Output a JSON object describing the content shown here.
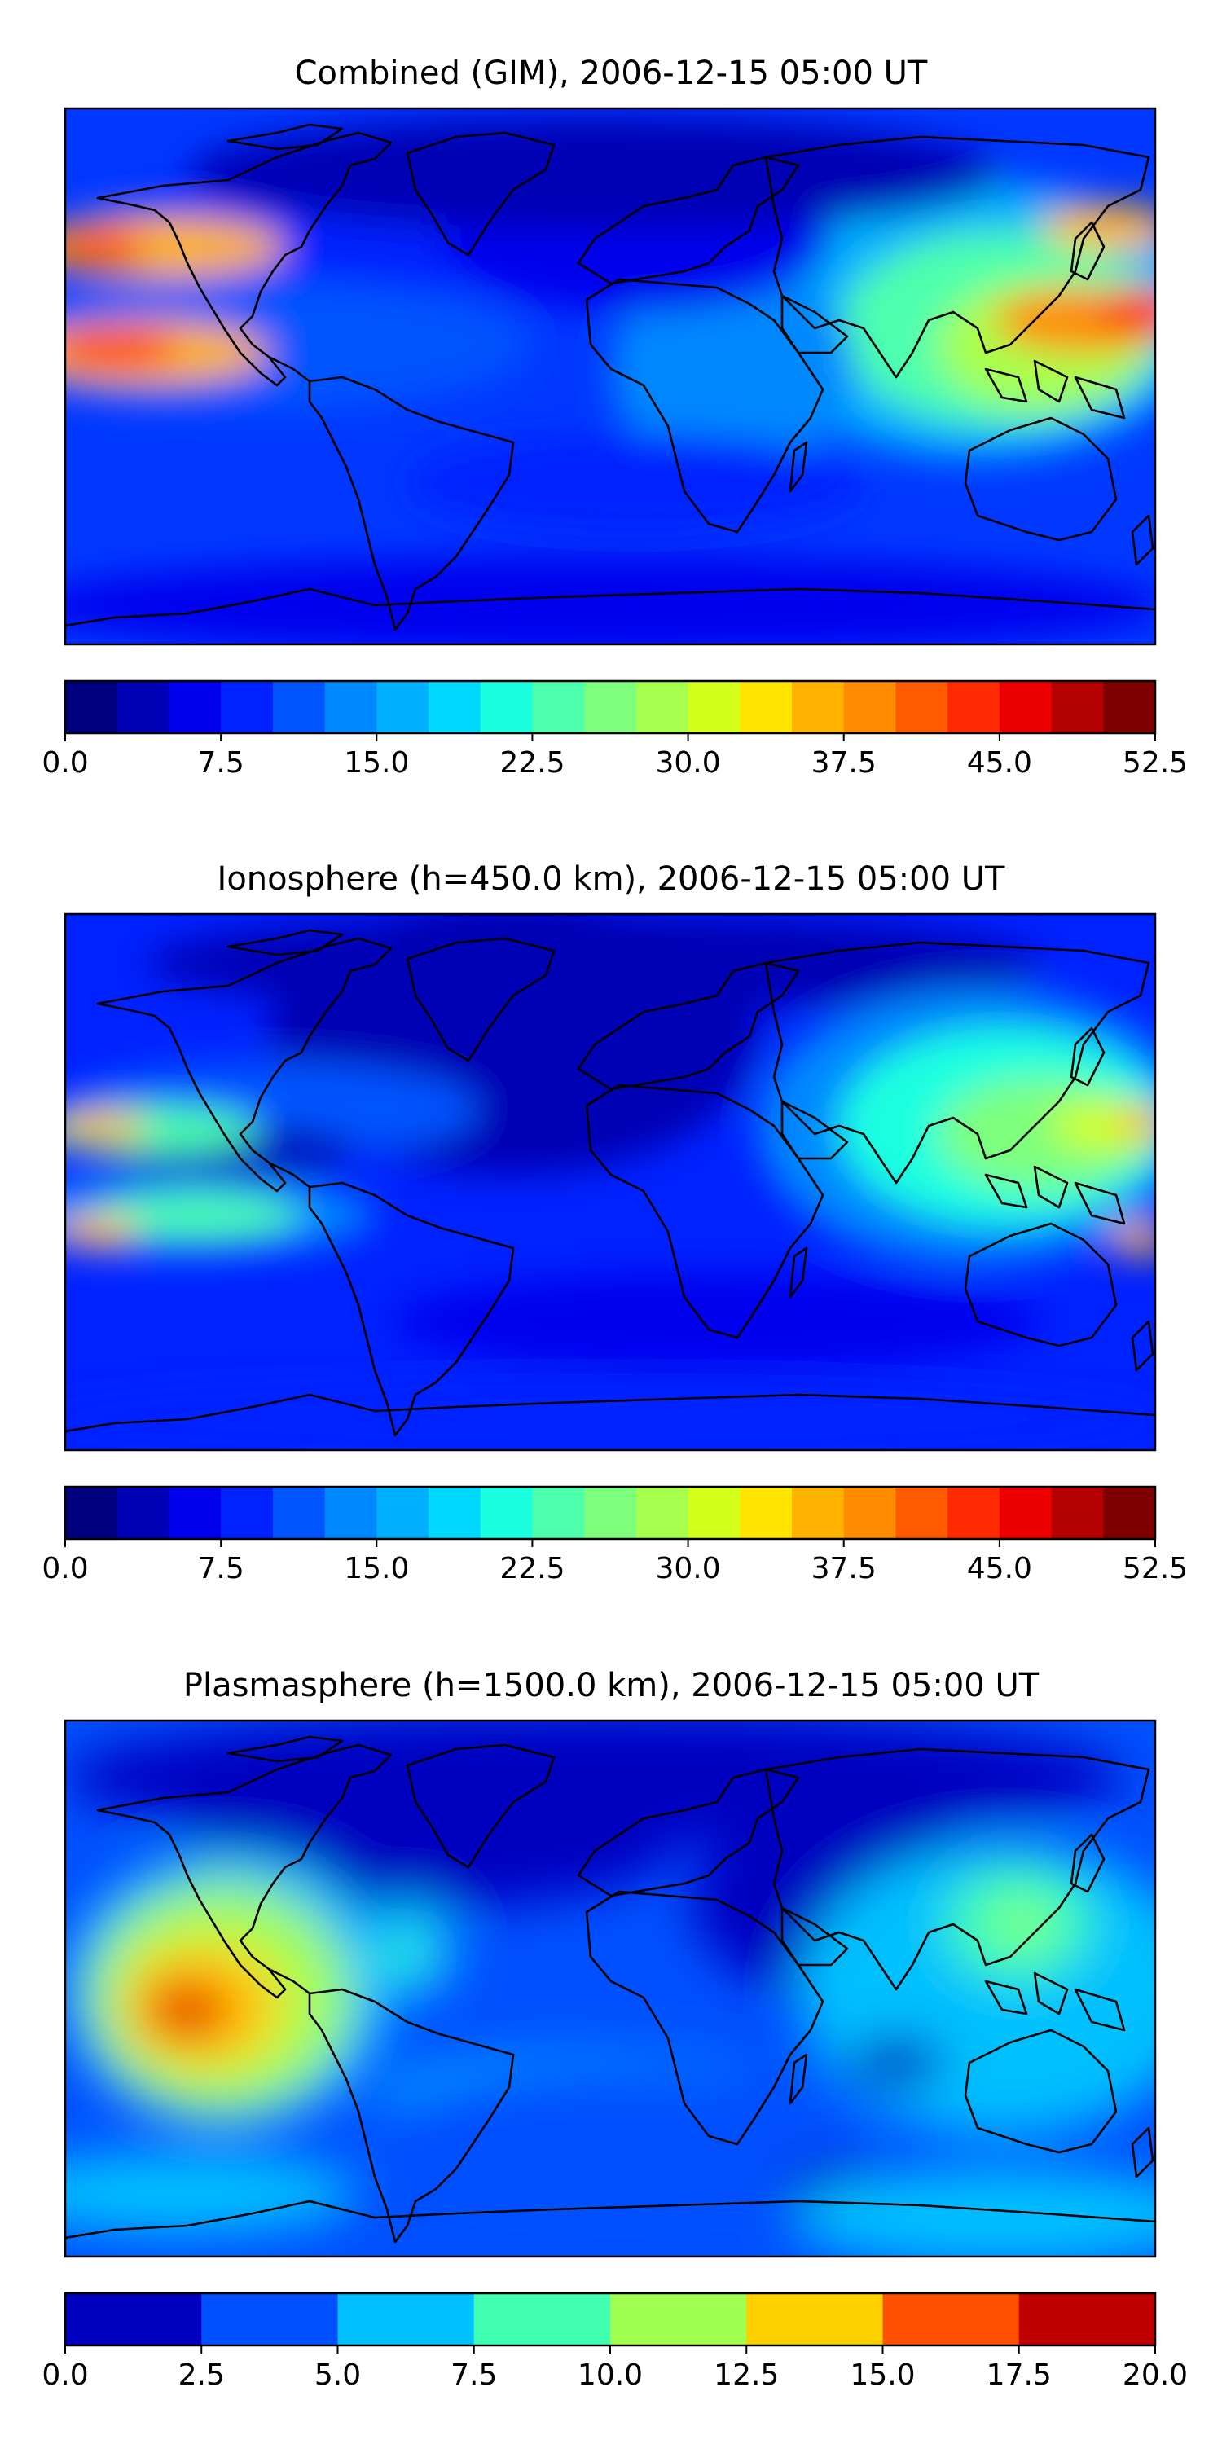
{
  "panels": [
    {
      "title": "Combined (GIM), 2006-12-15 05:00 UT",
      "bands": [
        "#00007f",
        "#0000b4",
        "#0000ee",
        "#0022ff",
        "#0055ff",
        "#0088ff",
        "#00b0ff",
        "#00d8ff",
        "#1affe0",
        "#4dffad",
        "#7dff7d",
        "#a7ff4d",
        "#d4ff1a",
        "#ffe500",
        "#ffb300",
        "#ff8c00",
        "#ff5a00",
        "#ff2a00",
        "#ee0000",
        "#b30000",
        "#7f0000"
      ],
      "ticks": [
        "0.0",
        "7.5",
        "15.0",
        "22.5",
        "30.0",
        "37.5",
        "45.0",
        "52.5"
      ],
      "tick_positions": [
        0,
        3,
        6,
        9,
        12,
        15,
        18,
        21
      ],
      "band_edges": 22
    },
    {
      "title": "Ionosphere  (h=450.0 km), 2006-12-15 05:00 UT",
      "bands": [
        "#00007f",
        "#0000b4",
        "#0000ee",
        "#0022ff",
        "#0055ff",
        "#0088ff",
        "#00b0ff",
        "#00d8ff",
        "#1affe0",
        "#4dffad",
        "#7dff7d",
        "#a7ff4d",
        "#d4ff1a",
        "#ffe500",
        "#ffb300",
        "#ff8c00",
        "#ff5a00",
        "#ff2a00",
        "#ee0000",
        "#b30000",
        "#7f0000"
      ],
      "ticks": [
        "0.0",
        "7.5",
        "15.0",
        "22.5",
        "30.0",
        "37.5",
        "45.0",
        "52.5"
      ],
      "tick_positions": [
        0,
        3,
        6,
        9,
        12,
        15,
        18,
        21
      ],
      "band_edges": 22
    },
    {
      "title": "Plasmasphere (h=1500.0 km), 2006-12-15 05:00 UT",
      "bands": [
        "#0000c0",
        "#0050ff",
        "#00c0ff",
        "#40ffb0",
        "#a0ff50",
        "#ffd000",
        "#ff5000",
        "#c00000"
      ],
      "ticks": [
        "0.0",
        "2.5",
        "5.0",
        "7.5",
        "10.0",
        "12.5",
        "15.0",
        "17.5",
        "20.0"
      ],
      "tick_positions": [
        0,
        1,
        2,
        3,
        4,
        5,
        6,
        7,
        8
      ],
      "band_edges": 9
    }
  ]
}
